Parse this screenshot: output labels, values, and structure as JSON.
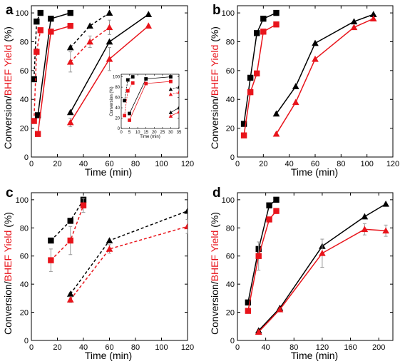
{
  "figure": {
    "ylabel_parts": [
      {
        "text": "Conversion/",
        "color": "#000000"
      },
      {
        "text": "BHEF Yield",
        "color": "#e8141b"
      },
      {
        "text": " (%)",
        "color": "#000000"
      }
    ],
    "xlabel": "Time (min)",
    "colors": {
      "conversion": "#000000",
      "yield": "#e8141b",
      "errorbar": "#9a9a9a"
    }
  },
  "chart_data": [
    {
      "panel": "a",
      "type": "line",
      "xlabel": "Time (min)",
      "ylabel": "Conversion/BHEF Yield (%)",
      "xlim": [
        0,
        120
      ],
      "ylim": [
        0,
        105
      ],
      "xticks": [
        0,
        20,
        40,
        60,
        80,
        100,
        120
      ],
      "yticks": [
        0,
        20,
        40,
        60,
        80,
        100
      ],
      "series": [
        {
          "role": "conversion",
          "marker": "square",
          "dash": true,
          "x": [
            2,
            4,
            7
          ],
          "y": [
            54,
            94,
            100
          ]
        },
        {
          "role": "yield",
          "marker": "square",
          "dash": true,
          "x": [
            2,
            4,
            7
          ],
          "y": [
            25,
            73,
            88
          ]
        },
        {
          "role": "conversion",
          "marker": "square",
          "dash": false,
          "x": [
            5,
            15,
            30
          ],
          "y": [
            29,
            96,
            100
          ]
        },
        {
          "role": "yield",
          "marker": "square",
          "dash": false,
          "x": [
            5,
            15,
            30
          ],
          "y": [
            16,
            87,
            91
          ]
        },
        {
          "role": "conversion",
          "marker": "triangle",
          "dash": true,
          "x": [
            30,
            45,
            60
          ],
          "y": [
            76,
            91,
            100
          ]
        },
        {
          "role": "yield",
          "marker": "triangle",
          "dash": true,
          "x": [
            30,
            45,
            60
          ],
          "y": [
            66,
            80,
            90
          ],
          "err": [
            7,
            4,
            5
          ]
        },
        {
          "role": "conversion",
          "marker": "triangle",
          "dash": false,
          "x": [
            30,
            60,
            90
          ],
          "y": [
            31,
            80,
            99
          ]
        },
        {
          "role": "yield",
          "marker": "triangle",
          "dash": false,
          "x": [
            30,
            60,
            90
          ],
          "y": [
            24,
            68,
            91
          ],
          "err": [
            3,
            8,
            0
          ]
        }
      ],
      "inset": {
        "ylabel": "Conversion (%)",
        "xlabel": "Time (min)",
        "xlim": [
          0,
          35
        ],
        "ylim": [
          0,
          105
        ],
        "xticks": [
          0,
          5,
          10,
          15,
          20,
          25,
          30,
          35
        ],
        "yticks": [
          0,
          20,
          40,
          60,
          80,
          100
        ],
        "series": [
          {
            "role": "conversion",
            "marker": "square",
            "dash": true,
            "x": [
              2,
              4,
              7
            ],
            "y": [
              54,
              94,
              100
            ]
          },
          {
            "role": "yield",
            "marker": "square",
            "dash": true,
            "x": [
              2,
              4,
              7
            ],
            "y": [
              25,
              73,
              88
            ]
          },
          {
            "role": "conversion",
            "marker": "square",
            "dash": false,
            "x": [
              5,
              15,
              30
            ],
            "y": [
              29,
              96,
              100
            ]
          },
          {
            "role": "yield",
            "marker": "square",
            "dash": false,
            "x": [
              5,
              15,
              30
            ],
            "y": [
              16,
              87,
              91
            ]
          },
          {
            "role": "conversion",
            "marker": "triangle",
            "dash": true,
            "x": [
              30,
              35
            ],
            "y": [
              76,
              80
            ]
          },
          {
            "role": "yield",
            "marker": "triangle",
            "dash": true,
            "x": [
              30,
              35
            ],
            "y": [
              66,
              70
            ]
          },
          {
            "role": "conversion",
            "marker": "triangle",
            "dash": false,
            "x": [
              30,
              35
            ],
            "y": [
              31,
              40
            ]
          },
          {
            "role": "yield",
            "marker": "triangle",
            "dash": false,
            "x": [
              30,
              35
            ],
            "y": [
              24,
              32
            ]
          }
        ]
      }
    },
    {
      "panel": "b",
      "type": "line",
      "xlabel": "Time (min)",
      "ylabel": "",
      "xlim": [
        0,
        120
      ],
      "ylim": [
        0,
        105
      ],
      "xticks": [
        0,
        20,
        40,
        60,
        80,
        100,
        120
      ],
      "yticks": [
        0,
        20,
        40,
        60,
        80,
        100
      ],
      "series": [
        {
          "role": "conversion",
          "marker": "square",
          "dash": false,
          "x": [
            5,
            10,
            15,
            20,
            30
          ],
          "y": [
            23,
            55,
            86,
            96,
            100
          ]
        },
        {
          "role": "yield",
          "marker": "square",
          "dash": false,
          "x": [
            5,
            10,
            15,
            20,
            30
          ],
          "y": [
            15,
            45,
            58,
            87,
            92
          ]
        },
        {
          "role": "conversion",
          "marker": "triangle",
          "dash": false,
          "x": [
            30,
            45,
            60,
            90,
            105
          ],
          "y": [
            30,
            49,
            79,
            94,
            99
          ]
        },
        {
          "role": "yield",
          "marker": "triangle",
          "dash": false,
          "x": [
            30,
            45,
            60,
            90,
            105
          ],
          "y": [
            16,
            38,
            68,
            90,
            96
          ]
        }
      ]
    },
    {
      "panel": "c",
      "type": "line",
      "xlabel": "Time (min)",
      "ylabel": "Conversion/BHEF Yield (%)",
      "xlim": [
        0,
        120
      ],
      "ylim": [
        0,
        105
      ],
      "xticks": [
        0,
        20,
        40,
        60,
        80,
        100,
        120
      ],
      "yticks": [
        0,
        20,
        40,
        60,
        80,
        100
      ],
      "series": [
        {
          "role": "conversion",
          "marker": "square",
          "dash": true,
          "x": [
            15,
            30,
            40
          ],
          "y": [
            71,
            85,
            100
          ]
        },
        {
          "role": "yield",
          "marker": "square",
          "dash": true,
          "x": [
            15,
            30,
            40
          ],
          "y": [
            57,
            71,
            96
          ],
          "err": [
            8,
            10,
            5
          ]
        },
        {
          "role": "conversion",
          "marker": "triangle",
          "dash": true,
          "x": [
            30,
            60,
            120
          ],
          "y": [
            33,
            71,
            92
          ]
        },
        {
          "role": "yield",
          "marker": "triangle",
          "dash": true,
          "x": [
            30,
            60,
            120
          ],
          "y": [
            29,
            65,
            81
          ],
          "err": [
            2,
            3,
            5
          ]
        }
      ]
    },
    {
      "panel": "d",
      "type": "line",
      "xlabel": "Time (min)",
      "ylabel": "",
      "xlim": [
        0,
        220
      ],
      "ylim": [
        0,
        105
      ],
      "xticks": [
        0,
        40,
        80,
        120,
        160,
        200
      ],
      "yticks": [
        0,
        20,
        40,
        60,
        80,
        100
      ],
      "series": [
        {
          "role": "conversion",
          "marker": "square",
          "dash": false,
          "x": [
            15,
            30,
            45,
            55
          ],
          "y": [
            27,
            65,
            96,
            100
          ]
        },
        {
          "role": "yield",
          "marker": "square",
          "dash": false,
          "x": [
            15,
            30,
            45,
            55
          ],
          "y": [
            21,
            60,
            86,
            92
          ],
          "err": [
            0,
            10,
            0,
            0
          ]
        },
        {
          "role": "conversion",
          "marker": "triangle",
          "dash": false,
          "x": [
            30,
            60,
            120,
            180,
            210
          ],
          "y": [
            7,
            23,
            67,
            88,
            97
          ]
        },
        {
          "role": "yield",
          "marker": "triangle",
          "dash": false,
          "x": [
            30,
            60,
            120,
            180,
            210
          ],
          "y": [
            6,
            22,
            62,
            79,
            78
          ],
          "err": [
            0,
            0,
            10,
            4,
            4
          ]
        }
      ]
    }
  ]
}
